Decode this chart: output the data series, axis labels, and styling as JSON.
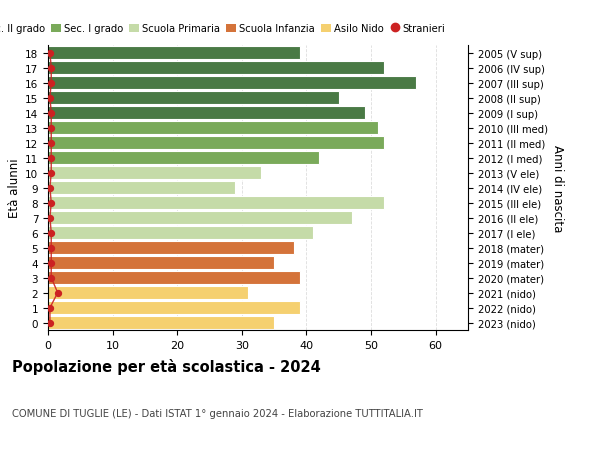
{
  "ages": [
    18,
    17,
    16,
    15,
    14,
    13,
    12,
    11,
    10,
    9,
    8,
    7,
    6,
    5,
    4,
    3,
    2,
    1,
    0
  ],
  "values": [
    39,
    52,
    57,
    45,
    49,
    51,
    52,
    42,
    33,
    29,
    52,
    47,
    41,
    38,
    35,
    39,
    31,
    39,
    35
  ],
  "stranieri": [
    0.3,
    0.5,
    0.5,
    0.3,
    0.5,
    0.5,
    0.5,
    0.5,
    0.5,
    0.3,
    0.5,
    0.3,
    0.5,
    0.5,
    0.5,
    0.5,
    1.5,
    0.3,
    0.3
  ],
  "right_labels": [
    "2005 (V sup)",
    "2006 (IV sup)",
    "2007 (III sup)",
    "2008 (II sup)",
    "2009 (I sup)",
    "2010 (III med)",
    "2011 (II med)",
    "2012 (I med)",
    "2013 (V ele)",
    "2014 (IV ele)",
    "2015 (III ele)",
    "2016 (II ele)",
    "2017 (I ele)",
    "2018 (mater)",
    "2019 (mater)",
    "2020 (mater)",
    "2021 (nido)",
    "2022 (nido)",
    "2023 (nido)"
  ],
  "bar_colors": [
    "#4a7a45",
    "#4a7a45",
    "#4a7a45",
    "#4a7a45",
    "#4a7a45",
    "#7aaa5a",
    "#7aaa5a",
    "#7aaa5a",
    "#c5dba8",
    "#c5dba8",
    "#c5dba8",
    "#c5dba8",
    "#c5dba8",
    "#d4733a",
    "#d4733a",
    "#d4733a",
    "#f5d070",
    "#f5d070",
    "#f5d070"
  ],
  "legend_labels": [
    "Sec. II grado",
    "Sec. I grado",
    "Scuola Primaria",
    "Scuola Infanzia",
    "Asilo Nido",
    "Stranieri"
  ],
  "legend_colors": [
    "#4a7a45",
    "#7aaa5a",
    "#c5dba8",
    "#d4733a",
    "#f5d070",
    "#cc2222"
  ],
  "stranieri_color": "#cc2222",
  "title": "Popolazione per età scolastica - 2024",
  "subtitle": "COMUNE DI TUGLIE (LE) - Dati ISTAT 1° gennaio 2024 - Elaborazione TUTTITALIA.IT",
  "ylabel_left": "Età alunni",
  "ylabel_right": "Anni di nascita",
  "xlim": [
    0,
    65
  ],
  "xticks": [
    0,
    10,
    20,
    30,
    40,
    50,
    60
  ],
  "background_color": "#ffffff",
  "grid_color": "#dddddd"
}
